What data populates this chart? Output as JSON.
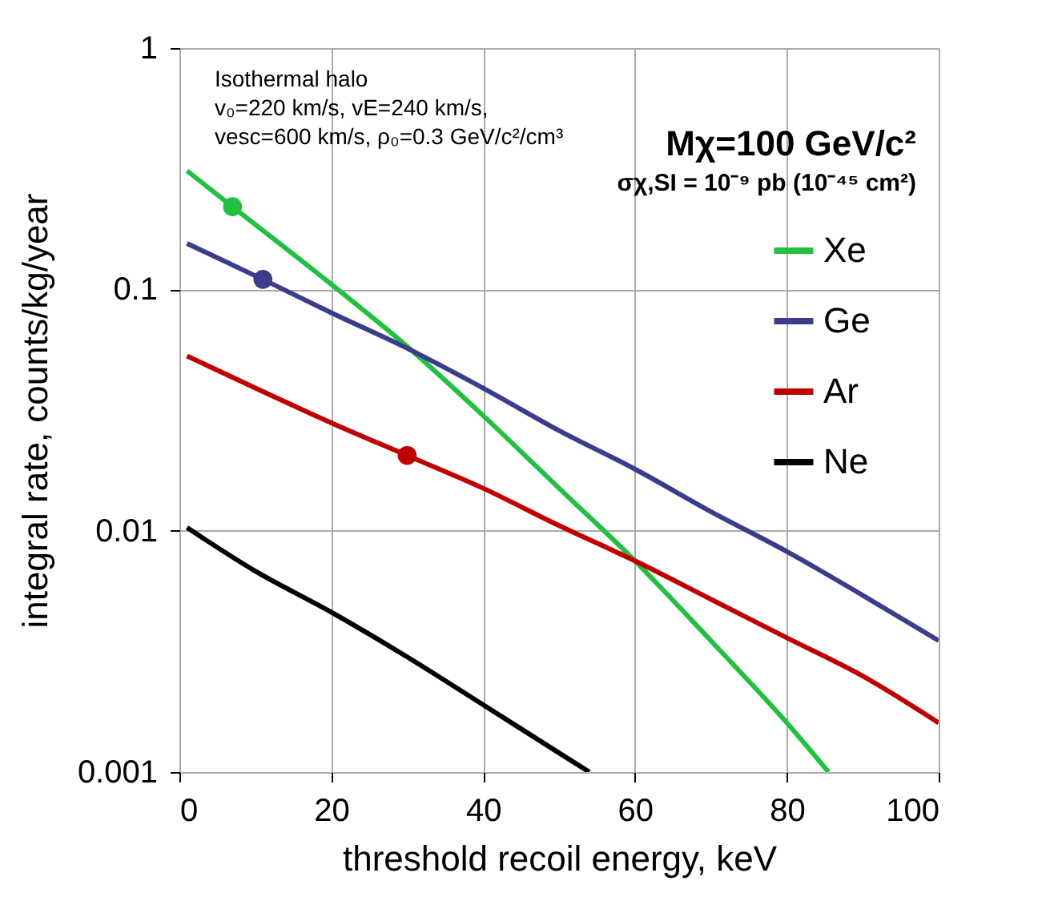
{
  "chart_data": {
    "type": "line",
    "xlabel": "threshold recoil energy, keV",
    "ylabel": "integral rate, counts/kg/year",
    "xlim": [
      0,
      100
    ],
    "xticks": [
      0,
      20,
      40,
      60,
      80,
      100
    ],
    "ylim": [
      0.001,
      1
    ],
    "yticks": [
      0.001,
      0.01,
      0.1,
      1
    ],
    "log": true,
    "grid": true,
    "legend": "top right",
    "line_style": "solid",
    "annotations": [
      "Isothermal halo",
      "v₀=220 km/s, vE=240 km/s,",
      "vesc=600 km/s, ρ₀=0.3 GeV/c²/cm³",
      "Mχ=100 GeV/c²",
      "σχ,SI = 10⁻⁹ pb (10⁻⁴⁵ cm²)"
    ],
    "series": [
      {
        "name": "Xe",
        "color": "#22c040",
        "marker": "none",
        "x": [
          1,
          7,
          20,
          30,
          40,
          50,
          60,
          70,
          80,
          85.5
        ],
        "values": [
          0.31,
          0.22,
          0.105,
          0.058,
          0.03,
          0.015,
          0.0075,
          0.0035,
          0.0016,
          0.001
        ]
      },
      {
        "name": "Ge",
        "color": "#3c3c8c",
        "marker": "none",
        "x": [
          1,
          11,
          20,
          30,
          40,
          50,
          60,
          70,
          80,
          90,
          100
        ],
        "values": [
          0.155,
          0.11,
          0.08,
          0.057,
          0.039,
          0.026,
          0.018,
          0.012,
          0.0082,
          0.0054,
          0.0035
        ]
      },
      {
        "name": "Ar",
        "color": "#c00000",
        "marker": "none",
        "x": [
          1,
          10,
          20,
          30,
          40,
          50,
          60,
          70,
          80,
          90,
          100
        ],
        "values": [
          0.053,
          0.039,
          0.028,
          0.0205,
          0.015,
          0.0105,
          0.0075,
          0.0052,
          0.0036,
          0.0025,
          0.0016
        ]
      },
      {
        "name": "Ne",
        "color": "#000000",
        "marker": "none",
        "x": [
          1,
          10,
          20,
          30,
          40,
          50,
          54
        ],
        "values": [
          0.0103,
          0.0068,
          0.0046,
          0.003,
          0.0019,
          0.0012,
          0.001
        ]
      },
      {
        "color": "#22c040",
        "type": "scatter",
        "marker": "circle",
        "x": [
          7
        ],
        "values": [
          0.22
        ]
      },
      {
        "color": "#3c3c8c",
        "type": "scatter",
        "marker": "circle",
        "x": [
          11
        ],
        "values": [
          0.11
        ]
      },
      {
        "color": "#c00000",
        "type": "scatter",
        "marker": "circle",
        "x": [
          30
        ],
        "values": [
          0.0205
        ]
      }
    ]
  }
}
